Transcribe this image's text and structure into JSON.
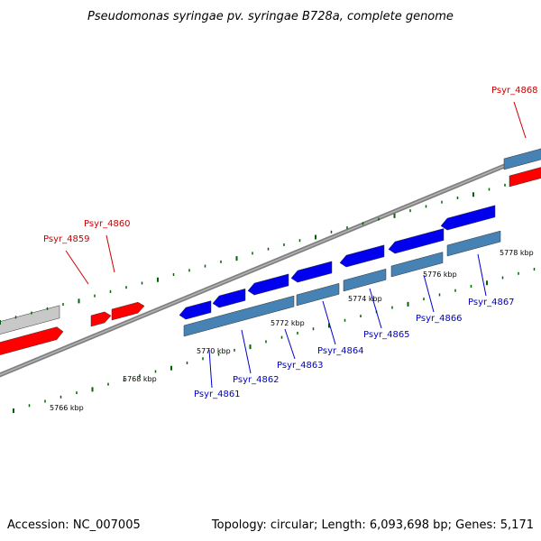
{
  "title": "Pseudomonas syringae pv. syringae B728a, complete genome",
  "footer": {
    "accession": "Accession: NC_007005",
    "topology": "Topology: circular; Length: 6,093,698 bp; Genes: 5,171"
  },
  "colors": {
    "forward_gene": "#0000ee",
    "reverse_gene": "#ff0000",
    "cds_blue": "#4682b4",
    "grey_feature": "#c8c8c8",
    "backbone": "#808080",
    "tick_green": "#006400",
    "label_red": "#cc0000",
    "label_blue": "#0000cc"
  },
  "ticks": [
    "5766 kbp",
    "5768 kbp",
    "5770 kbp",
    "5772 kbp",
    "5774 kbp",
    "5776 kbp",
    "5778 kbp"
  ],
  "genes": {
    "red_labels": [
      "Psyr_4859",
      "Psyr_4860",
      "Psyr_4868"
    ],
    "blue_labels": [
      "Psyr_4861",
      "Psyr_4862",
      "Psyr_4863",
      "Psyr_4864",
      "Psyr_4865",
      "Psyr_4866",
      "Psyr_4867"
    ]
  }
}
